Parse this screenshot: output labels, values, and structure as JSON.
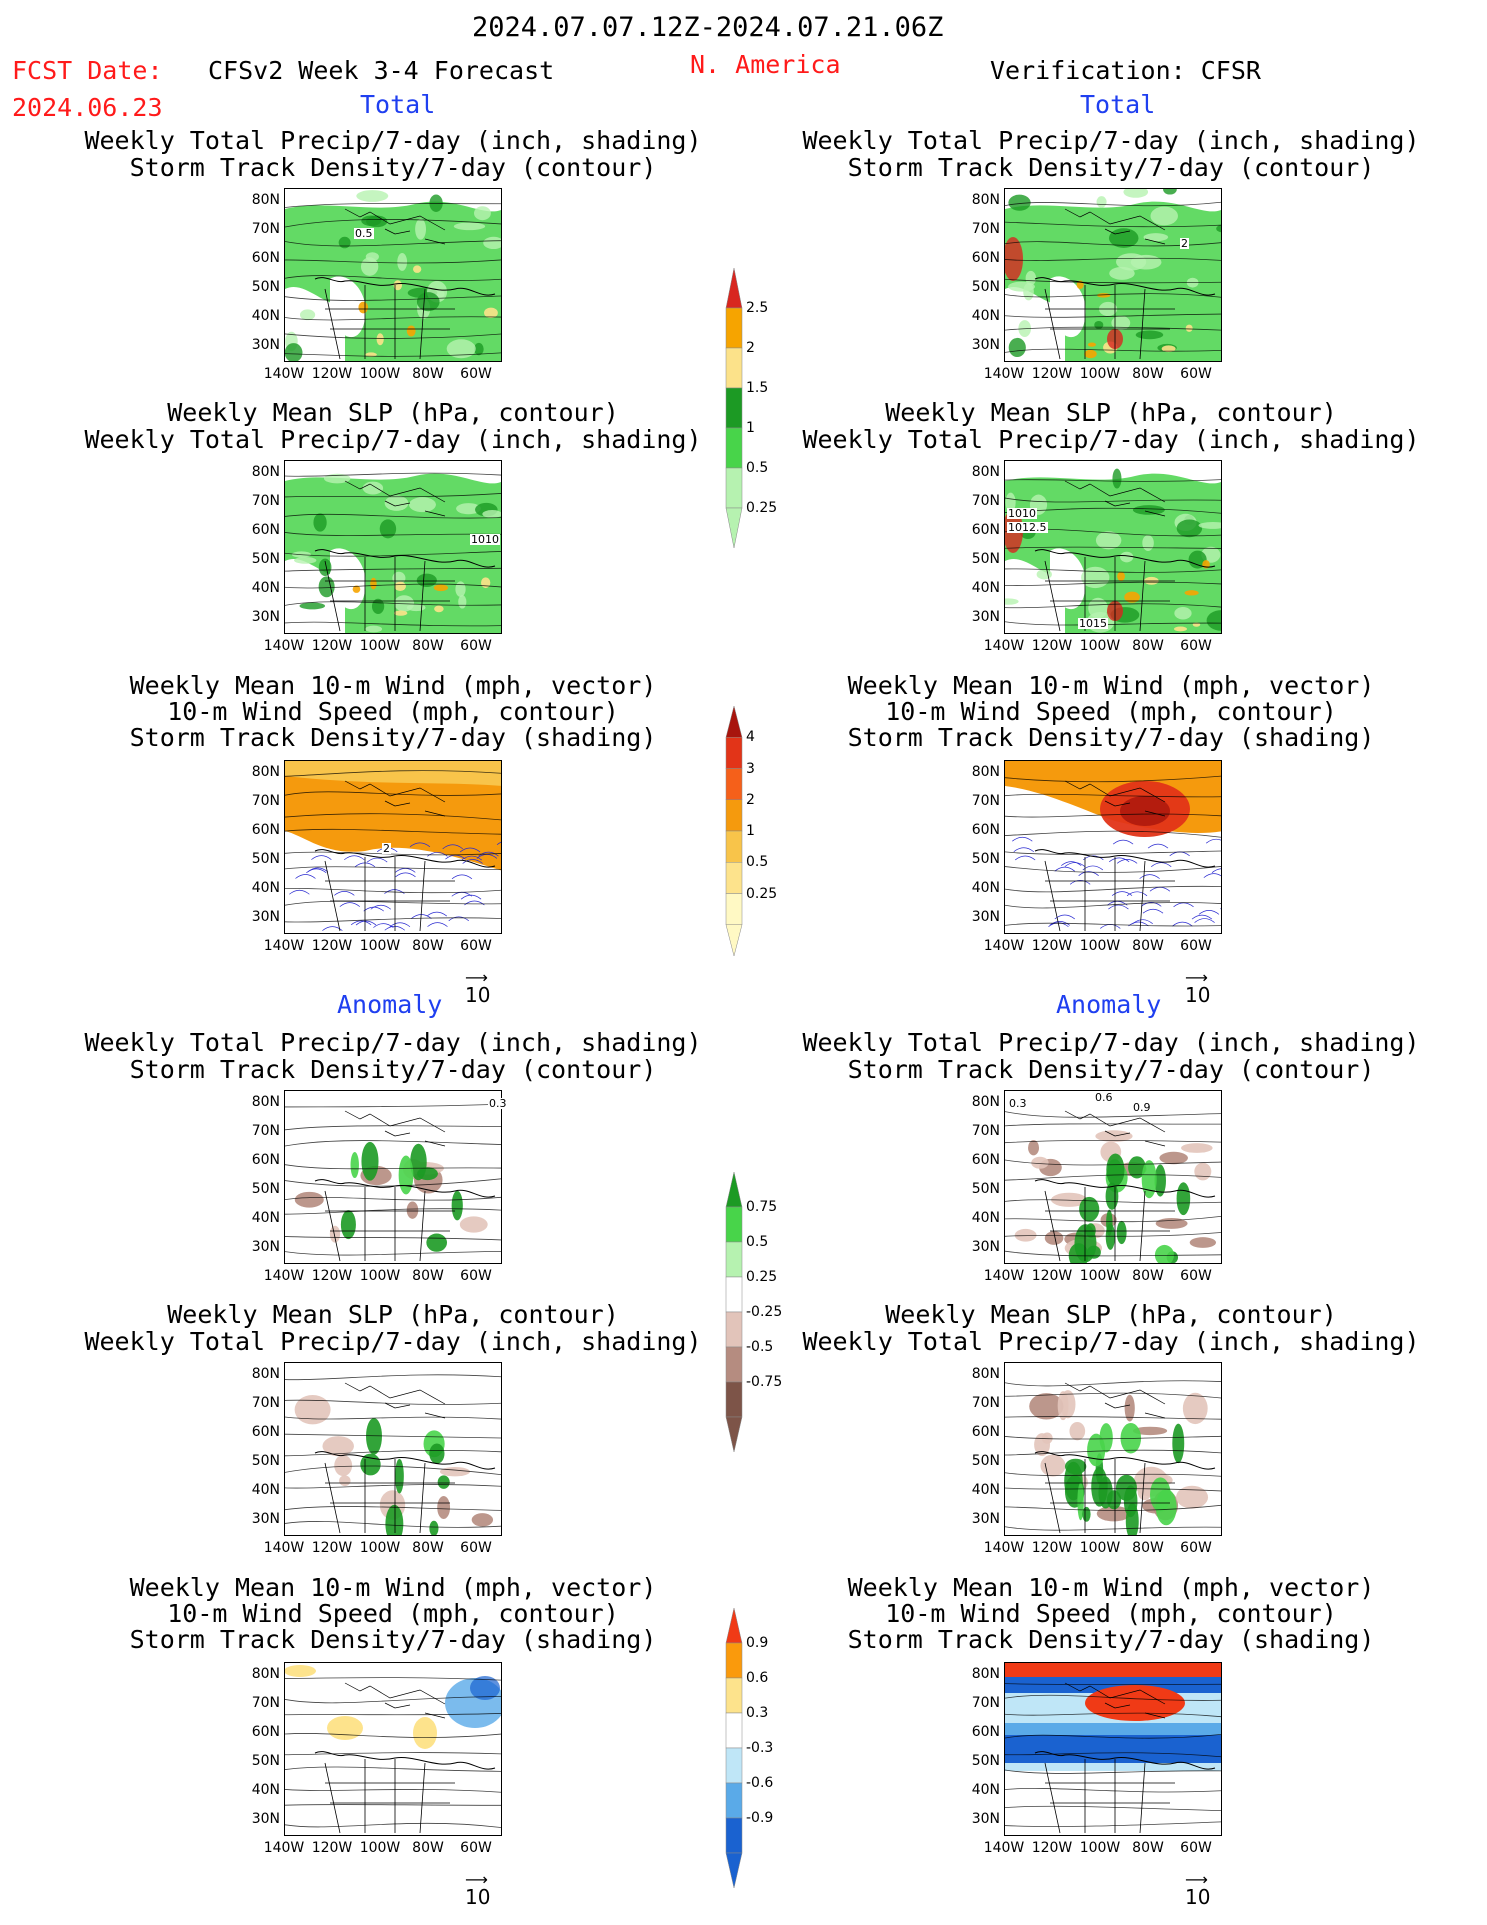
{
  "header": {
    "date_range": "2024.07.07.12Z-2024.07.21.06Z",
    "fcst_label": "FCST Date:",
    "fcst_date": "2024.06.23",
    "model": "CFSv2 Week 3-4 Forecast",
    "region": "N. America",
    "verification": "Verification: CFSR"
  },
  "sections": {
    "total": "Total",
    "anomaly": "Anomaly"
  },
  "titles": {
    "precip_storm": [
      "Weekly Total Precip/7-day (inch, shading)",
      "Storm Track Density/7-day (contour)"
    ],
    "slp_precip": [
      "Weekly Mean SLP (hPa, contour)",
      "Weekly Total Precip/7-day (inch, shading)"
    ],
    "wind": [
      "Weekly Mean 10-m Wind (mph, vector)",
      "10-m Wind Speed (mph, contour)",
      "Storm Track Density/7-day (shading)"
    ]
  },
  "axes": {
    "lat": [
      "80N",
      "70N",
      "60N",
      "50N",
      "40N",
      "30N"
    ],
    "lon": [
      "140W",
      "120W",
      "100W",
      "80W",
      "60W"
    ]
  },
  "vector_ref": "10",
  "contour_labels": {
    "fcst_precip_total": "0.5",
    "fcst_slp_total": "1010",
    "fcst_wind_total": "2",
    "obs_precip_total": "2",
    "obs_slp_total": [
      "1010",
      "1012.5",
      "1015"
    ],
    "obs_precip_anom": [
      "0.3",
      "0.6",
      "0.9"
    ],
    "fcst_precip_anom": "0.3"
  },
  "colorbars": {
    "precip_total": {
      "labels": [
        "2.5",
        "2",
        "1.5",
        "1",
        "0.5",
        "0.25"
      ],
      "colors": [
        "#d8261f",
        "#f6a400",
        "#fce28a",
        "#1c9a24",
        "#48d44a",
        "#b6f2b0"
      ]
    },
    "storm_total": {
      "labels": [
        "4",
        "3",
        "2",
        "1",
        "0.5",
        "0.25"
      ],
      "colors": [
        "#a8150d",
        "#e23418",
        "#f5601a",
        "#f59a0d",
        "#f8c44a",
        "#fde38c",
        "#fff9c4"
      ]
    },
    "precip_anom": {
      "labels": [
        "0.75",
        "0.5",
        "0.25",
        "-0.25",
        "-0.5",
        "-0.75"
      ],
      "colors": [
        "#1c9a24",
        "#48d44a",
        "#b6f2b0",
        "#ffffff",
        "#e2c4ba",
        "#b58c80",
        "#7d5448"
      ]
    },
    "storm_anom": {
      "labels": [
        "0.9",
        "0.6",
        "0.3",
        "-0.3",
        "-0.6",
        "-0.9"
      ],
      "colors": [
        "#f03a16",
        "#fa9a0c",
        "#fde38c",
        "#ffffff",
        "#bfe6f7",
        "#5aaae8",
        "#1a62d0"
      ]
    }
  }
}
